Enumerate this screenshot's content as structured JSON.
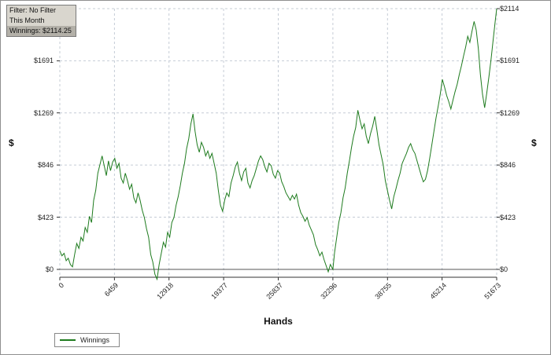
{
  "filter_box": {
    "line1": "Filter: No Filter",
    "line2": "This Month",
    "line3": "Winnings: $2114.25"
  },
  "chart_data": {
    "type": "line",
    "title": "",
    "xlabel": "Hands",
    "ylabel": "$",
    "legend": [
      {
        "name": "Winnings",
        "color": "#1e7b1e"
      }
    ],
    "legend_position": "bottom-left",
    "grid": true,
    "grid_color": "#c5ccd6",
    "zero_line_color": "#555555",
    "axis_color": "#333333",
    "xlim": [
      0,
      51673
    ],
    "ylim": [
      -64,
      2114
    ],
    "xticks": [
      0,
      6459,
      12918,
      19377,
      25837,
      32296,
      38755,
      45214,
      51673
    ],
    "yticks": [
      0,
      423,
      846,
      1269,
      1691,
      2114
    ],
    "ytick_labels": [
      "$0",
      "$423",
      "$846",
      "$1269",
      "$1691",
      "$2114"
    ],
    "series": [
      {
        "name": "Winnings",
        "color": "#1e7b1e",
        "points": [
          [
            0,
            150
          ],
          [
            250,
            110
          ],
          [
            500,
            130
          ],
          [
            750,
            70
          ],
          [
            1000,
            90
          ],
          [
            1250,
            40
          ],
          [
            1500,
            20
          ],
          [
            1750,
            120
          ],
          [
            2000,
            210
          ],
          [
            2250,
            170
          ],
          [
            2500,
            260
          ],
          [
            2750,
            230
          ],
          [
            3000,
            340
          ],
          [
            3250,
            300
          ],
          [
            3500,
            430
          ],
          [
            3750,
            380
          ],
          [
            4000,
            560
          ],
          [
            4250,
            640
          ],
          [
            4500,
            780
          ],
          [
            4750,
            850
          ],
          [
            5000,
            920
          ],
          [
            5250,
            840
          ],
          [
            5500,
            760
          ],
          [
            5750,
            880
          ],
          [
            6000,
            800
          ],
          [
            6250,
            870
          ],
          [
            6500,
            900
          ],
          [
            6750,
            820
          ],
          [
            7000,
            860
          ],
          [
            7250,
            740
          ],
          [
            7500,
            700
          ],
          [
            7750,
            780
          ],
          [
            8000,
            720
          ],
          [
            8250,
            650
          ],
          [
            8500,
            690
          ],
          [
            8750,
            580
          ],
          [
            9000,
            540
          ],
          [
            9250,
            620
          ],
          [
            9500,
            560
          ],
          [
            9750,
            480
          ],
          [
            10000,
            420
          ],
          [
            10250,
            330
          ],
          [
            10500,
            260
          ],
          [
            10750,
            120
          ],
          [
            11000,
            60
          ],
          [
            11250,
            -40
          ],
          [
            11500,
            -80
          ],
          [
            11750,
            40
          ],
          [
            12000,
            130
          ],
          [
            12250,
            220
          ],
          [
            12500,
            180
          ],
          [
            12750,
            300
          ],
          [
            13000,
            260
          ],
          [
            13250,
            380
          ],
          [
            13500,
            420
          ],
          [
            13750,
            520
          ],
          [
            14000,
            590
          ],
          [
            14250,
            680
          ],
          [
            14500,
            780
          ],
          [
            14750,
            860
          ],
          [
            15000,
            980
          ],
          [
            15250,
            1060
          ],
          [
            15500,
            1180
          ],
          [
            15750,
            1260
          ],
          [
            16000,
            1120
          ],
          [
            16250,
            1010
          ],
          [
            16500,
            950
          ],
          [
            16750,
            1030
          ],
          [
            17000,
            990
          ],
          [
            17250,
            920
          ],
          [
            17500,
            960
          ],
          [
            17750,
            900
          ],
          [
            18000,
            940
          ],
          [
            18250,
            860
          ],
          [
            18500,
            780
          ],
          [
            18750,
            640
          ],
          [
            19000,
            520
          ],
          [
            19250,
            470
          ],
          [
            19500,
            560
          ],
          [
            19750,
            620
          ],
          [
            20000,
            590
          ],
          [
            20250,
            700
          ],
          [
            20500,
            760
          ],
          [
            20750,
            830
          ],
          [
            21000,
            870
          ],
          [
            21250,
            780
          ],
          [
            21500,
            720
          ],
          [
            21750,
            790
          ],
          [
            22000,
            820
          ],
          [
            22250,
            700
          ],
          [
            22500,
            660
          ],
          [
            22750,
            720
          ],
          [
            23000,
            760
          ],
          [
            23250,
            820
          ],
          [
            23500,
            880
          ],
          [
            23750,
            920
          ],
          [
            24000,
            890
          ],
          [
            24250,
            830
          ],
          [
            24500,
            790
          ],
          [
            24750,
            860
          ],
          [
            25000,
            840
          ],
          [
            25250,
            770
          ],
          [
            25500,
            740
          ],
          [
            25750,
            800
          ],
          [
            26000,
            780
          ],
          [
            26250,
            710
          ],
          [
            26500,
            670
          ],
          [
            26750,
            620
          ],
          [
            27000,
            590
          ],
          [
            27250,
            560
          ],
          [
            27500,
            600
          ],
          [
            27750,
            570
          ],
          [
            28000,
            610
          ],
          [
            28250,
            520
          ],
          [
            28500,
            460
          ],
          [
            28750,
            430
          ],
          [
            29000,
            390
          ],
          [
            29250,
            420
          ],
          [
            29500,
            360
          ],
          [
            29750,
            320
          ],
          [
            30000,
            280
          ],
          [
            30250,
            200
          ],
          [
            30500,
            160
          ],
          [
            30750,
            110
          ],
          [
            31000,
            140
          ],
          [
            31250,
            80
          ],
          [
            31500,
            30
          ],
          [
            31750,
            -20
          ],
          [
            32000,
            40
          ],
          [
            32296,
            0
          ],
          [
            32500,
            140
          ],
          [
            32750,
            260
          ],
          [
            33000,
            380
          ],
          [
            33250,
            460
          ],
          [
            33500,
            580
          ],
          [
            33750,
            660
          ],
          [
            34000,
            780
          ],
          [
            34250,
            880
          ],
          [
            34500,
            990
          ],
          [
            34750,
            1080
          ],
          [
            35000,
            1150
          ],
          [
            35250,
            1290
          ],
          [
            35500,
            1210
          ],
          [
            35750,
            1140
          ],
          [
            36000,
            1180
          ],
          [
            36250,
            1080
          ],
          [
            36500,
            1020
          ],
          [
            36750,
            1100
          ],
          [
            37000,
            1160
          ],
          [
            37250,
            1240
          ],
          [
            37500,
            1130
          ],
          [
            37750,
            1010
          ],
          [
            38000,
            930
          ],
          [
            38250,
            850
          ],
          [
            38500,
            720
          ],
          [
            38750,
            640
          ],
          [
            39000,
            560
          ],
          [
            39250,
            490
          ],
          [
            39500,
            590
          ],
          [
            39750,
            650
          ],
          [
            40000,
            720
          ],
          [
            40250,
            780
          ],
          [
            40500,
            860
          ],
          [
            40750,
            900
          ],
          [
            41000,
            940
          ],
          [
            41250,
            990
          ],
          [
            41500,
            1020
          ],
          [
            41750,
            970
          ],
          [
            42000,
            940
          ],
          [
            42250,
            880
          ],
          [
            42500,
            820
          ],
          [
            42750,
            760
          ],
          [
            43000,
            710
          ],
          [
            43250,
            730
          ],
          [
            43500,
            800
          ],
          [
            43750,
            900
          ],
          [
            44000,
            1010
          ],
          [
            44250,
            1120
          ],
          [
            44500,
            1230
          ],
          [
            44750,
            1320
          ],
          [
            45000,
            1420
          ],
          [
            45250,
            1540
          ],
          [
            45500,
            1480
          ],
          [
            45750,
            1410
          ],
          [
            46000,
            1360
          ],
          [
            46250,
            1300
          ],
          [
            46500,
            1370
          ],
          [
            46750,
            1440
          ],
          [
            47000,
            1500
          ],
          [
            47250,
            1580
          ],
          [
            47500,
            1650
          ],
          [
            47750,
            1730
          ],
          [
            48000,
            1800
          ],
          [
            48250,
            1890
          ],
          [
            48500,
            1840
          ],
          [
            48750,
            1930
          ],
          [
            49000,
            2010
          ],
          [
            49250,
            1940
          ],
          [
            49500,
            1790
          ],
          [
            49750,
            1580
          ],
          [
            50000,
            1420
          ],
          [
            50250,
            1310
          ],
          [
            50500,
            1430
          ],
          [
            50750,
            1560
          ],
          [
            51000,
            1700
          ],
          [
            51250,
            1860
          ],
          [
            51500,
            2010
          ],
          [
            51673,
            2114
          ]
        ]
      }
    ]
  }
}
